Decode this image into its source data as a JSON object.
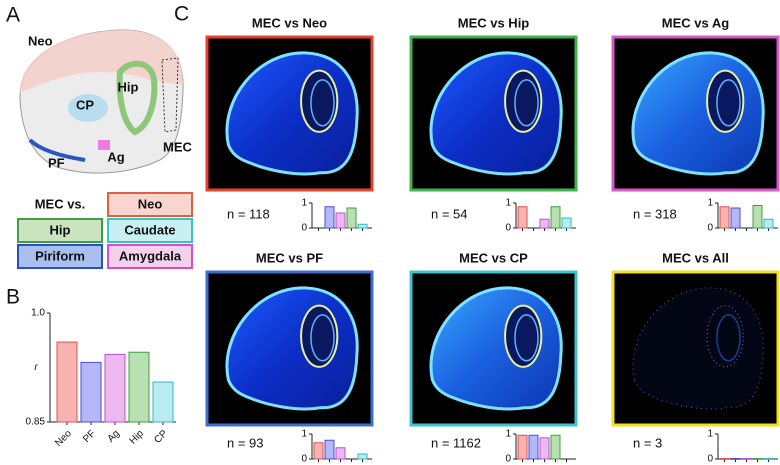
{
  "panel_labels": [
    "A",
    "B",
    "C"
  ],
  "panel_a": {
    "regions": [
      "Neo",
      "CP",
      "Hip",
      "PF",
      "Ag",
      "MEC"
    ],
    "legend_title": "MEC vs.",
    "legend": [
      {
        "label": "Neo",
        "color": "#f9d5cf",
        "border": "#e0603c"
      },
      {
        "label": "Hip",
        "color": "#c9e4bf",
        "border": "#3fa040"
      },
      {
        "label": "Caudate",
        "color": "#c9f0f0",
        "border": "#3cc0c8"
      },
      {
        "label": "Piriform",
        "color": "#a9c0ee",
        "border": "#2a50c0"
      },
      {
        "label": "Amygdala",
        "color": "#f5d0ee",
        "border": "#d050c8"
      }
    ]
  },
  "chart_data": [
    {
      "type": "bar",
      "ylabel": "r",
      "categories": [
        "Neo",
        "PF",
        "Ag",
        "Hip",
        "CP"
      ],
      "values": [
        0.96,
        0.932,
        0.943,
        0.946,
        0.905
      ],
      "colors": [
        "#f8b4b0",
        "#b4b8f8",
        "#ecb8f0",
        "#b8e0b0",
        "#b8ecf0"
      ],
      "edge_colors": [
        "#e05050",
        "#4a50d0",
        "#c050d0",
        "#40a040",
        "#30b8c8"
      ],
      "ylim": [
        0.85,
        1.0
      ],
      "yticks": [
        0.85,
        {
          "value": 1.0,
          "label": "1.0"
        }
      ]
    },
    {
      "type": "bar",
      "values": [
        null,
        0.85,
        0.6,
        0.8,
        0.15
      ],
      "colors": [
        "#f8b4b0",
        "#b4b8f8",
        "#ecb8f0",
        "#b8e0b0",
        "#b8ecf0"
      ],
      "edge_colors": [
        "#e05050",
        "#4a50d0",
        "#c050d0",
        "#40a040",
        "#30b8c8"
      ],
      "ylim": [
        0,
        1
      ],
      "yticks": [
        0,
        1
      ]
    },
    {
      "type": "bar",
      "values": [
        0.85,
        null,
        0.35,
        0.85,
        0.4
      ],
      "colors": [
        "#f8b4b0",
        "#b4b8f8",
        "#ecb8f0",
        "#b8e0b0",
        "#b8ecf0"
      ],
      "edge_colors": [
        "#e05050",
        "#4a50d0",
        "#c050d0",
        "#40a040",
        "#30b8c8"
      ],
      "ylim": [
        0,
        1
      ],
      "yticks": [
        0,
        1
      ]
    },
    {
      "type": "bar",
      "values": [
        0.85,
        0.8,
        null,
        0.9,
        0.35
      ],
      "colors": [
        "#f8b4b0",
        "#b4b8f8",
        "#ecb8f0",
        "#b8e0b0",
        "#b8ecf0"
      ],
      "edge_colors": [
        "#e05050",
        "#4a50d0",
        "#c050d0",
        "#40a040",
        "#30b8c8"
      ],
      "ylim": [
        0,
        1
      ],
      "yticks": [
        0,
        1
      ]
    },
    {
      "type": "bar",
      "values": [
        0.65,
        0.75,
        0.45,
        null,
        0.2
      ],
      "colors": [
        "#f8b4b0",
        "#b4b8f8",
        "#ecb8f0",
        "#b8e0b0",
        "#b8ecf0"
      ],
      "edge_colors": [
        "#e05050",
        "#4a50d0",
        "#c050d0",
        "#40a040",
        "#30b8c8"
      ],
      "ylim": [
        0,
        1
      ],
      "yticks": [
        0,
        1
      ]
    },
    {
      "type": "bar",
      "values": [
        0.95,
        0.95,
        0.85,
        0.95,
        null
      ],
      "colors": [
        "#f8b4b0",
        "#b4b8f8",
        "#ecb8f0",
        "#b8e0b0",
        "#b8ecf0"
      ],
      "edge_colors": [
        "#e05050",
        "#4a50d0",
        "#c050d0",
        "#40a040",
        "#30b8c8"
      ],
      "ylim": [
        0,
        1
      ],
      "yticks": [
        0,
        1
      ]
    },
    {
      "type": "bar",
      "values": [
        0.02,
        0.02,
        0.02,
        0.02,
        0.02
      ],
      "colors": [
        "#f8b4b0",
        "#b4b8f8",
        "#ecb8f0",
        "#b8e0b0",
        "#b8ecf0"
      ],
      "edge_colors": [
        "#e05050",
        "#4a50d0",
        "#c050d0",
        "#40a040",
        "#30b8c8"
      ],
      "ylim": [
        0,
        1
      ],
      "yticks": [
        0,
        1
      ]
    }
  ],
  "panel_c": [
    {
      "title": "MEC vs Neo",
      "n_label": "n = 118",
      "border_color": "#e5412b"
    },
    {
      "title": "MEC vs Hip",
      "n_label": "n = 54",
      "border_color": "#3fb24a"
    },
    {
      "title": "MEC vs Ag",
      "n_label": "n = 318",
      "border_color": "#d957c9"
    },
    {
      "title": "MEC vs PF",
      "n_label": "n = 93",
      "border_color": "#3a6fd0"
    },
    {
      "title": "MEC vs CP",
      "n_label": "n = 1162",
      "border_color": "#3ec3d0"
    },
    {
      "title": "MEC vs All",
      "n_label": "n = 3",
      "border_color": "#f0e020"
    }
  ]
}
